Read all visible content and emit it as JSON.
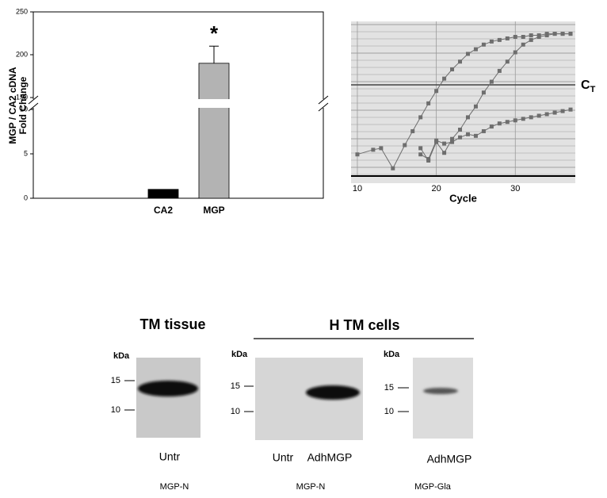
{
  "chart_data": [
    {
      "type": "bar",
      "ylabel": [
        "MGP / CA2 cDNA",
        "Fold Change"
      ],
      "categories": [
        "CA2",
        "MGP"
      ],
      "values": [
        1,
        190
      ],
      "errors": [
        null,
        20
      ],
      "colors": [
        "#000000",
        "#b3b3b3"
      ],
      "annotations": [
        {
          "category": 1,
          "text": "*"
        }
      ],
      "ylim": [
        0,
        250
      ],
      "ybreak": [
        10,
        150
      ],
      "yticks": [
        0,
        5,
        10,
        150,
        200,
        250
      ]
    },
    {
      "type": "line",
      "xlabel": "Cycle",
      "xlim": [
        9.2,
        37.6
      ],
      "xticks": [
        10,
        20,
        30
      ],
      "ylim": [
        0,
        100
      ],
      "threshold": 59,
      "threshold_label": {
        "main": "C",
        "sub": "T"
      },
      "series": [
        {
          "color": "#6e6e6e",
          "x": [
            10,
            12,
            13,
            14.5,
            16,
            17,
            18,
            19,
            20,
            21,
            22,
            23,
            24,
            25,
            26,
            27,
            28,
            29,
            30,
            31,
            32,
            33,
            34,
            35,
            36,
            37
          ],
          "values": [
            14,
            17,
            18,
            5,
            20,
            29,
            38,
            47,
            55,
            63,
            69,
            74,
            79,
            82,
            85,
            87,
            88,
            89,
            90,
            90,
            91,
            91,
            92,
            92,
            92,
            92
          ]
        },
        {
          "color": "#6e6e6e",
          "x": [
            18,
            19,
            20,
            21,
            22,
            23,
            24,
            25,
            26,
            27,
            28,
            29,
            30,
            31,
            32,
            33,
            34,
            35,
            36,
            37
          ],
          "values": [
            18,
            10,
            22,
            15,
            24,
            30,
            38,
            45,
            54,
            61,
            68,
            74,
            80,
            85,
            88,
            90,
            91,
            92,
            92,
            92
          ]
        },
        {
          "color": "#6e6e6e",
          "x": [
            18,
            19,
            20,
            21,
            22,
            23,
            24,
            25,
            26,
            27,
            28,
            29,
            30,
            31,
            32,
            33,
            34,
            35,
            36,
            37
          ],
          "values": [
            14,
            11,
            23,
            21,
            22,
            25,
            27,
            26,
            29,
            32,
            34,
            35,
            36,
            37,
            38,
            39,
            40,
            41,
            42,
            43
          ]
        }
      ]
    }
  ],
  "blots": {
    "tissue_title": "TM tissue",
    "cells_title": "H TM cells",
    "panels": [
      {
        "kda": "kDa",
        "markers": [
          "15",
          "10"
        ],
        "lanes": [
          "Untr"
        ],
        "antibody": "MGP-N"
      },
      {
        "kda": "kDa",
        "markers": [
          "15",
          "10"
        ],
        "lanes": [
          "Untr",
          "AdhMGP"
        ],
        "antibody": "MGP-N"
      },
      {
        "kda": "kDa",
        "markers": [
          "15",
          "10"
        ],
        "lanes": [
          "AdhMGP"
        ],
        "antibody": "MGP-Gla"
      }
    ]
  }
}
